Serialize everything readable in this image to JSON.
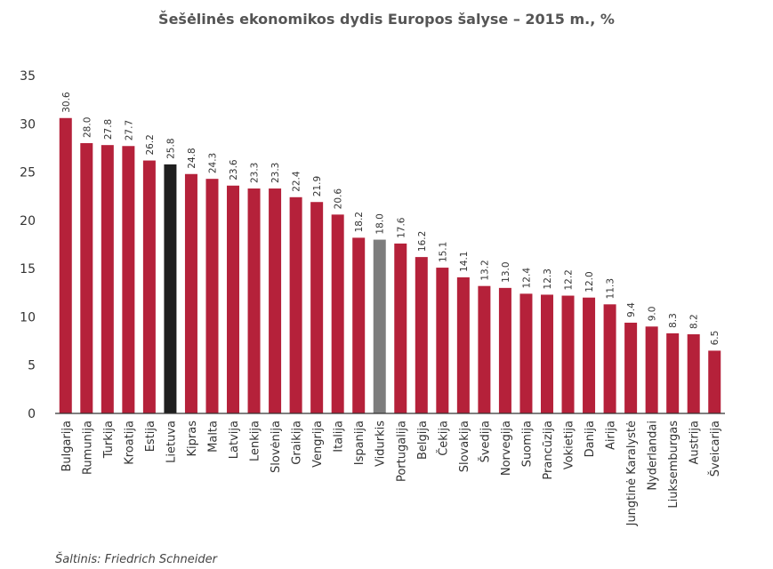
{
  "chart_data": {
    "type": "bar",
    "title": "Šešėlinės ekonomikos dydis Europos šalyse – 2015 m., %",
    "xlabel": "",
    "ylabel": "",
    "ylim": [
      0,
      35
    ],
    "yticks": [
      0,
      5,
      10,
      15,
      20,
      25,
      30,
      35
    ],
    "grid": false,
    "colors": {
      "default": "#b5213a",
      "highlight": "#1f1f1f",
      "average": "#7d7d7d"
    },
    "categories": [
      "Bulgarija",
      "Rumunija",
      "Turkija",
      "Kroatija",
      "Estija",
      "Lietuva",
      "Kipras",
      "Malta",
      "Latvija",
      "Lenkija",
      "Slovėnija",
      "Graikija",
      "Vengrija",
      "Italija",
      "Ispanija",
      "Vidurkis",
      "Portugalija",
      "Belgija",
      "Čekija",
      "Slovakija",
      "Švedija",
      "Norvegija",
      "Suomija",
      "Prancūzija",
      "Vokietija",
      "Danija",
      "Airija",
      "Jungtinė Karalystė",
      "Nyderlandai",
      "Liuksemburgas",
      "Austrija",
      "Šveicarija"
    ],
    "values": [
      30.6,
      28.0,
      27.8,
      27.7,
      26.2,
      25.8,
      24.8,
      24.3,
      23.6,
      23.3,
      23.3,
      22.4,
      21.9,
      20.6,
      18.2,
      18.0,
      17.6,
      16.2,
      15.1,
      14.1,
      13.2,
      13.0,
      12.4,
      12.3,
      12.2,
      12.0,
      11.3,
      9.4,
      9.0,
      8.3,
      8.2,
      6.5
    ],
    "value_labels": [
      "30.6",
      "28.0",
      "27.8",
      "27.7",
      "26.2",
      "25.8",
      "24.8",
      "24.3",
      "23.6",
      "23.3",
      "23.3",
      "22.4",
      "21.9",
      "20.6",
      "18.2",
      "18.0",
      "17.6",
      "16.2",
      "15.1",
      "14.1",
      "13.2",
      "13.0",
      "12.4",
      "12.3",
      "12.2",
      "12.0",
      "11.3",
      "9.4",
      "9.0",
      "8.3",
      "8.2",
      "6.5"
    ],
    "highlight_category": "Lietuva",
    "average_category": "Vidurkis"
  },
  "source": "Šaltinis: Friedrich Schneider"
}
